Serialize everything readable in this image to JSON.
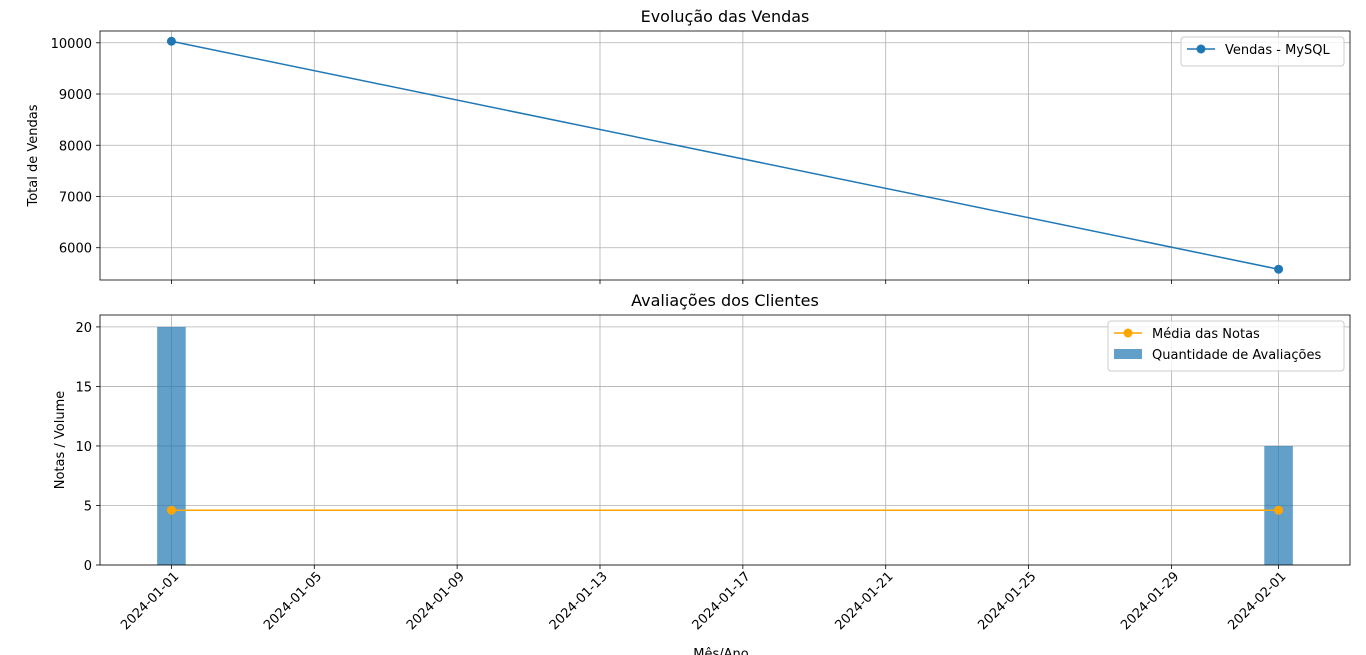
{
  "chart_data": [
    {
      "type": "line",
      "title": "Evolução das Vendas",
      "xlabel": "",
      "ylabel": "Total de Vendas",
      "x_ticks": [
        "2024-01-01",
        "2024-01-05",
        "2024-01-09",
        "2024-01-13",
        "2024-01-17",
        "2024-01-21",
        "2024-01-25",
        "2024-01-29",
        "2024-02-01"
      ],
      "y_ticks": [
        6000,
        7000,
        8000,
        9000,
        10000
      ],
      "ylim": [
        5370,
        10230
      ],
      "xlim": [
        "2023-12-30",
        "2024-02-03"
      ],
      "grid": true,
      "legend_position": "upper right",
      "series": [
        {
          "name": "Vendas - MySQL",
          "color": "#1f77b4",
          "marker": "circle",
          "x": [
            "2024-01-01",
            "2024-02-01"
          ],
          "y": [
            10030,
            5580
          ]
        }
      ]
    },
    {
      "type": "bar",
      "title": "Avaliações dos Clientes",
      "xlabel": "Mês/Ano",
      "ylabel": "Notas / Volume",
      "x_ticks": [
        "2024-01-01",
        "2024-01-05",
        "2024-01-09",
        "2024-01-13",
        "2024-01-17",
        "2024-01-21",
        "2024-01-25",
        "2024-01-29",
        "2024-02-01"
      ],
      "y_ticks": [
        0,
        5,
        10,
        15,
        20
      ],
      "ylim": [
        0,
        21
      ],
      "xlim": [
        "2023-12-30",
        "2024-02-03"
      ],
      "grid": true,
      "legend_position": "upper right",
      "series": [
        {
          "name": "Média das Notas",
          "type": "line",
          "color": "#ffa500",
          "marker": "circle",
          "x": [
            "2024-01-01",
            "2024-02-01"
          ],
          "y": [
            4.6,
            4.6
          ]
        },
        {
          "name": "Quantidade de Avaliações",
          "type": "bar",
          "color": "#1f77b4",
          "opacity": 0.7,
          "x": [
            "2024-01-01",
            "2024-02-01"
          ],
          "y": [
            20,
            10
          ]
        }
      ]
    }
  ]
}
